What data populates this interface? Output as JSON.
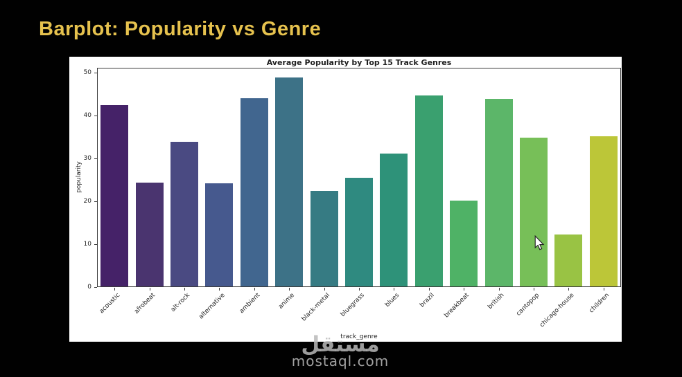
{
  "slide": {
    "title": "Barplot: Popularity vs Genre",
    "title_color": "#e6c24e",
    "background": "#010101"
  },
  "watermark": {
    "logo_text": "مستقل",
    "domain": "mostaql.com"
  },
  "chart_data": {
    "type": "bar",
    "title": "Average Popularity by Top 15 Track Genres",
    "xlabel": "track_genre",
    "ylabel": "popularity",
    "ylim": [
      0,
      51
    ],
    "yticks": [
      0,
      10,
      20,
      30,
      40,
      50
    ],
    "grid": false,
    "legend": "none",
    "palette": "viridis",
    "categories": [
      "acoustic",
      "afrobeat",
      "alt-rock",
      "alternative",
      "ambient",
      "anime",
      "black-metal",
      "bluegrass",
      "blues",
      "brazil",
      "breakbeat",
      "british",
      "cantopop",
      "chicago-house",
      "children"
    ],
    "values": [
      42.5,
      24.4,
      33.9,
      24.2,
      44.1,
      48.8,
      22.4,
      25.5,
      31.2,
      44.6,
      20.2,
      43.8,
      34.8,
      12.3,
      35.1
    ],
    "bar_colors": [
      "#452268",
      "#4a346f",
      "#4a4a82",
      "#46598e",
      "#41668f",
      "#3d7287",
      "#367b83",
      "#2f8a80",
      "#2e9279",
      "#3aa06f",
      "#4fb266",
      "#5cb669",
      "#77bf58",
      "#99c344",
      "#bcc638"
    ]
  }
}
